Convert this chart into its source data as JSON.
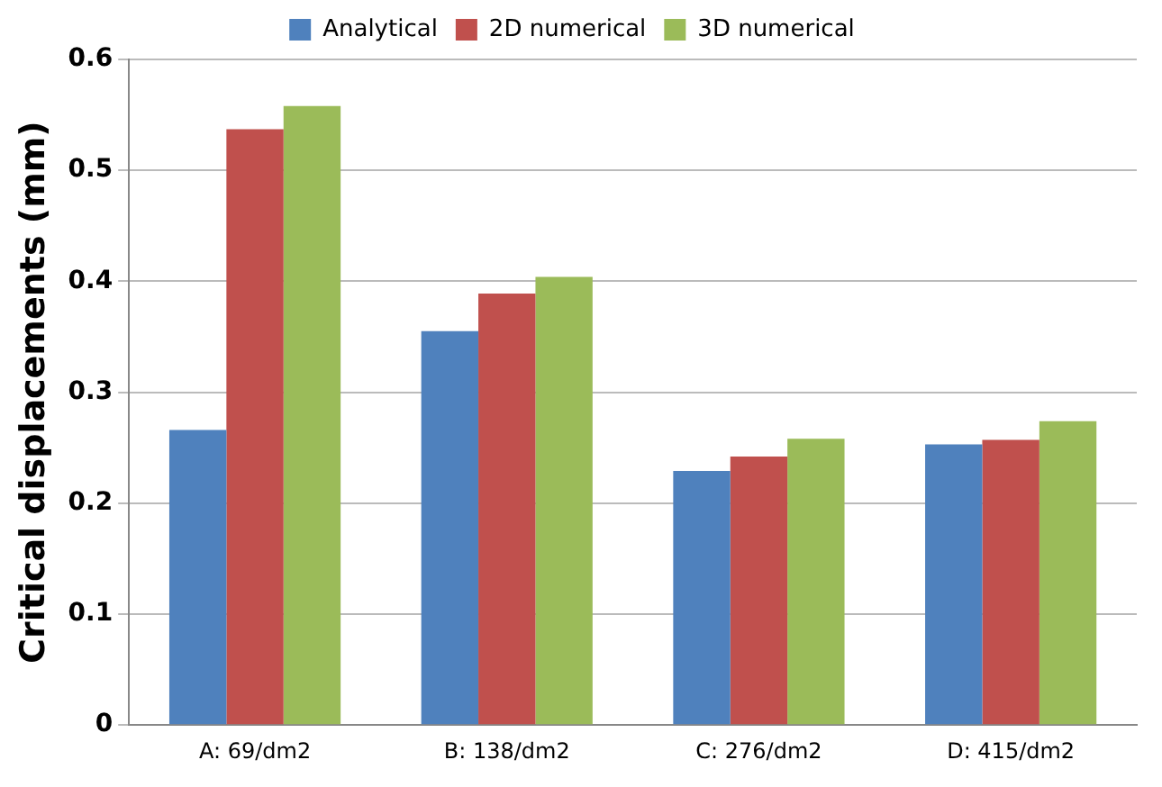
{
  "chart_data": {
    "type": "bar",
    "ylabel": "Critical displacements (mm)",
    "categories": [
      "A: 69/dm2",
      "B: 138/dm2",
      "C: 276/dm2",
      "D: 415/dm2"
    ],
    "series": [
      {
        "name": "Analytical",
        "color": "#4f81bd",
        "values": [
          0.266,
          0.355,
          0.229,
          0.253
        ]
      },
      {
        "name": "2D numerical",
        "color": "#c0504d",
        "values": [
          0.537,
          0.389,
          0.242,
          0.257
        ]
      },
      {
        "name": "3D numerical",
        "color": "#9bbb59",
        "values": [
          0.558,
          0.404,
          0.258,
          0.274
        ]
      }
    ],
    "ylim": [
      0,
      0.6
    ],
    "yticks": [
      0,
      0.1,
      0.2,
      0.3,
      0.4,
      0.5,
      0.6
    ],
    "grid": "y",
    "legend": "top"
  }
}
